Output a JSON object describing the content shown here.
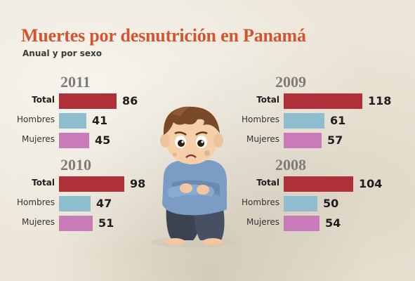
{
  "title": "Muertes por desnutrición en Panamá",
  "subtitle": "Anual y por sexo",
  "colors": {
    "total": "#b0303a",
    "hombres": "#8ebdd0",
    "mujeres": "#c97bb9",
    "title": "#d2552f"
  },
  "chart_data": [
    {
      "type": "bar",
      "title": "2011",
      "categories": [
        "Total",
        "Hombres",
        "Mujeres"
      ],
      "values": [
        86,
        41,
        45
      ]
    },
    {
      "type": "bar",
      "title": "2010",
      "categories": [
        "Total",
        "Hombres",
        "Mujeres"
      ],
      "values": [
        98,
        47,
        51
      ]
    },
    {
      "type": "bar",
      "title": "2009",
      "categories": [
        "Total",
        "Hombres",
        "Mujeres"
      ],
      "values": [
        118,
        61,
        57
      ]
    },
    {
      "type": "bar",
      "title": "2008",
      "categories": [
        "Total",
        "Hombres",
        "Mujeres"
      ],
      "values": [
        104,
        50,
        54
      ]
    }
  ]
}
